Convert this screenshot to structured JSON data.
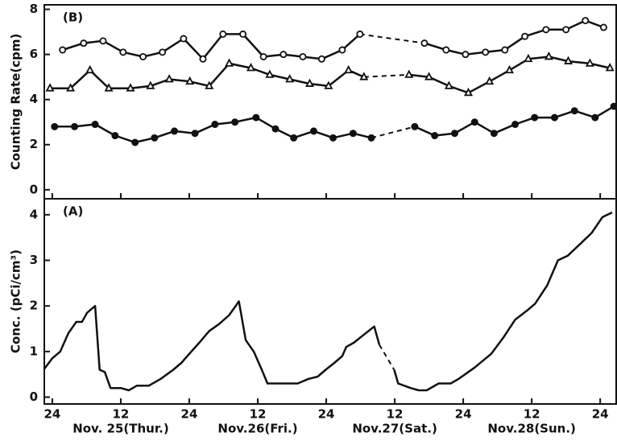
{
  "chart_data": [
    {
      "type": "line",
      "annotation": "(B)",
      "ylabel": "Counting Rate(cpm)",
      "xlim": [
        -1.4,
        98.8
      ],
      "ylim": [
        -0.4,
        8.2
      ],
      "yticks": [
        0,
        2,
        4,
        6,
        8
      ],
      "series": [
        {
          "marker": "open-circle",
          "color": "#111111",
          "x": [
            1.8,
            5.5,
            8.9,
            12.4,
            15.9,
            19.3,
            23.0,
            26.4,
            29.9,
            33.4,
            37.0,
            40.5,
            43.9,
            47.2,
            50.8,
            53.9,
            null,
            65.2,
            69.0,
            72.4,
            75.9,
            79.3,
            82.8,
            86.5,
            90.0,
            93.4,
            96.6
          ],
          "values": [
            6.2,
            6.5,
            6.6,
            6.1,
            5.9,
            6.1,
            6.7,
            5.8,
            6.9,
            6.9,
            5.9,
            6.0,
            5.9,
            5.8,
            6.2,
            6.9,
            null,
            6.5,
            6.2,
            6.0,
            6.1,
            6.2,
            6.8,
            7.1,
            7.1,
            7.5,
            7.2
          ]
        },
        {
          "marker": "triangle",
          "color": "#111111",
          "x": [
            -0.4,
            3.2,
            6.6,
            9.9,
            13.7,
            17.2,
            20.5,
            24.1,
            27.5,
            31.0,
            34.8,
            38.1,
            41.6,
            45.1,
            48.4,
            51.9,
            54.6,
            null,
            62.5,
            66.0,
            69.5,
            72.9,
            76.6,
            80.1,
            83.4,
            87.0,
            90.4,
            94.2,
            97.7
          ],
          "values": [
            4.5,
            4.5,
            5.3,
            4.5,
            4.5,
            4.6,
            4.9,
            4.8,
            4.6,
            5.6,
            5.4,
            5.1,
            4.9,
            4.7,
            4.6,
            5.3,
            5.0,
            null,
            5.1,
            5.0,
            4.6,
            4.3,
            4.8,
            5.3,
            5.8,
            5.9,
            5.7,
            5.6,
            5.4
          ]
        },
        {
          "marker": "filled-circle",
          "color": "#111111",
          "x": [
            0.4,
            3.9,
            7.5,
            11.0,
            14.5,
            17.9,
            21.4,
            25.0,
            28.5,
            32.0,
            35.7,
            39.1,
            42.3,
            45.8,
            49.2,
            52.7,
            55.9,
            null,
            63.5,
            67.0,
            70.5,
            74.0,
            77.4,
            81.1,
            84.5,
            88.0,
            91.5,
            95.1,
            98.4
          ],
          "values": [
            2.8,
            2.8,
            2.9,
            2.4,
            2.1,
            2.3,
            2.6,
            2.5,
            2.9,
            3.0,
            3.2,
            2.7,
            2.3,
            2.6,
            2.3,
            2.5,
            2.3,
            null,
            2.8,
            2.4,
            2.5,
            3.0,
            2.5,
            2.9,
            3.2,
            3.2,
            3.5,
            3.2,
            3.7
          ]
        }
      ]
    },
    {
      "type": "line",
      "annotation": "(A)",
      "ylabel": "Conc. (pCi/cm³)",
      "xlim": [
        -1.4,
        98.8
      ],
      "ylim": [
        -0.15,
        4.35
      ],
      "yticks": [
        0,
        1,
        2,
        3,
        4
      ],
      "xticks": [
        {
          "value": 0,
          "label": "24"
        },
        {
          "value": 12,
          "label": "12"
        },
        {
          "value": 24,
          "label": "24"
        },
        {
          "value": 36,
          "label": "12"
        },
        {
          "value": 48,
          "label": "24"
        },
        {
          "value": 60,
          "label": "12"
        },
        {
          "value": 72,
          "label": "24"
        },
        {
          "value": 84,
          "label": "12"
        },
        {
          "value": 96,
          "label": "24"
        }
      ],
      "day_labels": [
        "Nov. 25(Thur.)",
        "Nov.26(Fri.)",
        "Nov.27(Sat.)",
        "Nov.28(Sun.)"
      ],
      "series": [
        {
          "marker": "none",
          "color": "#111111",
          "x": [
            -1.4,
            0,
            1.4,
            2.8,
            4.2,
            5.2,
            6.1,
            7.5,
            8.3,
            9.2,
            10.2,
            12.0,
            13.4,
            14.8,
            16.9,
            19.0,
            21.2,
            22.6,
            24.0,
            25.8,
            27.5,
            29.2,
            31.0,
            32.7,
            33.9,
            35.3,
            36.7,
            37.7,
            40.2,
            43.0,
            44.9,
            46.5,
            47.9,
            49.4,
            50.8,
            51.5,
            52.9,
            53.9,
            56.4,
            57.3,
            null,
            59.9,
            60.6,
            62.8,
            64.2,
            65.6,
            67.7,
            69.8,
            71.2,
            74.0,
            76.9,
            79.0,
            81.1,
            83.2,
            84.6,
            86.7,
            88.6,
            90.3,
            92.4,
            94.5,
            96.4,
            98.1
          ],
          "values": [
            0.62,
            0.85,
            1.0,
            1.4,
            1.65,
            1.65,
            1.85,
            2.0,
            0.6,
            0.55,
            0.2,
            0.2,
            0.15,
            0.25,
            0.25,
            0.4,
            0.6,
            0.75,
            0.95,
            1.2,
            1.45,
            1.6,
            1.8,
            2.1,
            1.25,
            1.0,
            0.6,
            0.3,
            0.3,
            0.3,
            0.4,
            0.45,
            0.6,
            0.75,
            0.9,
            1.1,
            1.2,
            1.3,
            1.55,
            1.15,
            null,
            0.6,
            0.3,
            0.2,
            0.15,
            0.15,
            0.3,
            0.3,
            0.4,
            0.65,
            0.95,
            1.3,
            1.7,
            1.9,
            2.05,
            2.45,
            3.0,
            3.1,
            3.35,
            3.6,
            3.95,
            4.05
          ]
        }
      ]
    }
  ]
}
